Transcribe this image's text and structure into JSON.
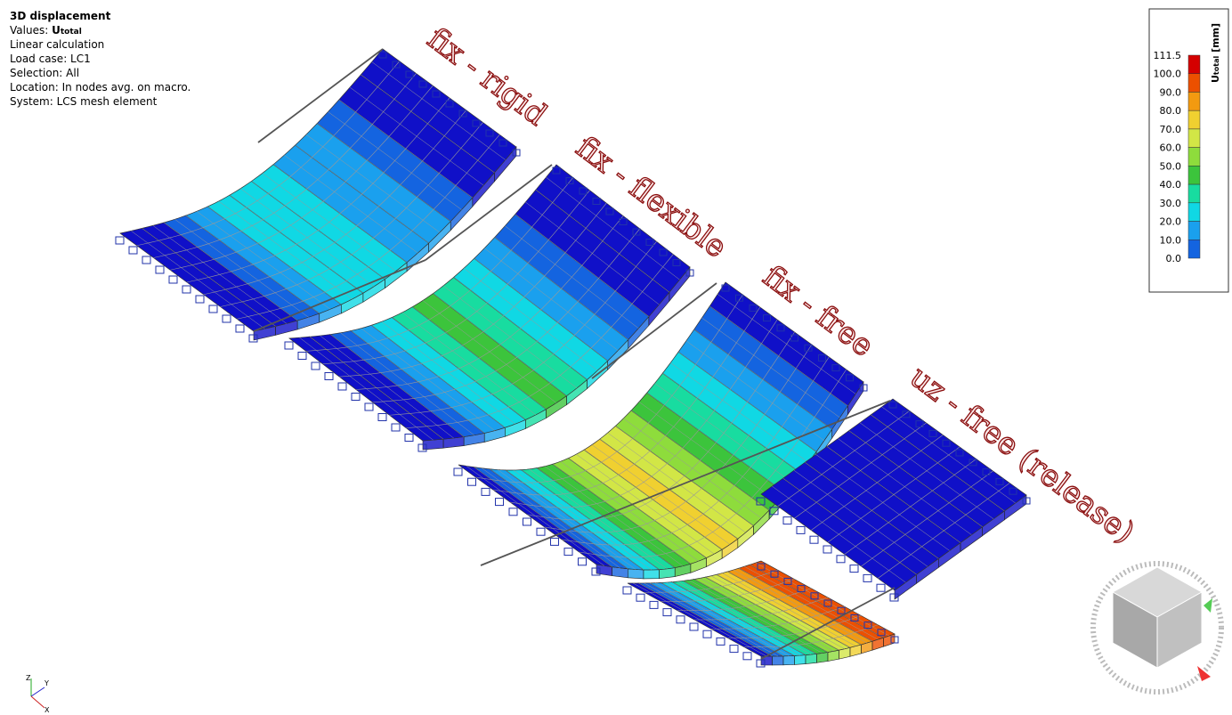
{
  "info": {
    "title": "3D displacement",
    "values_prefix": "Values:",
    "values_symbol": "U",
    "values_subscript": "total",
    "lines": [
      "Linear calculation",
      "Load case: LC1",
      "Selection: All",
      "Location: In nodes avg. on macro.",
      "System: LCS mesh element"
    ]
  },
  "legend": {
    "symbol": "U",
    "subscript": "total",
    "unit": "[mm]",
    "levels": [
      "111.5",
      "100.0",
      "90.0",
      "80.0",
      "70.0",
      "60.0",
      "50.0",
      "40.0",
      "30.0",
      "20.0",
      "10.0",
      "0.0"
    ],
    "colors": [
      "#d40000",
      "#ec5000",
      "#f39a10",
      "#f0d030",
      "#d2e646",
      "#8edc3c",
      "#3cc43c",
      "#18dca0",
      "#10d8e4",
      "#1aa0ee",
      "#1464e0",
      "#1010c8"
    ]
  },
  "labels": [
    "fix - rigid",
    "fix - flexible",
    "fix - free",
    "uz - free (release)"
  ],
  "axes": {
    "z": "Z",
    "y": "Y",
    "x": "X"
  }
}
